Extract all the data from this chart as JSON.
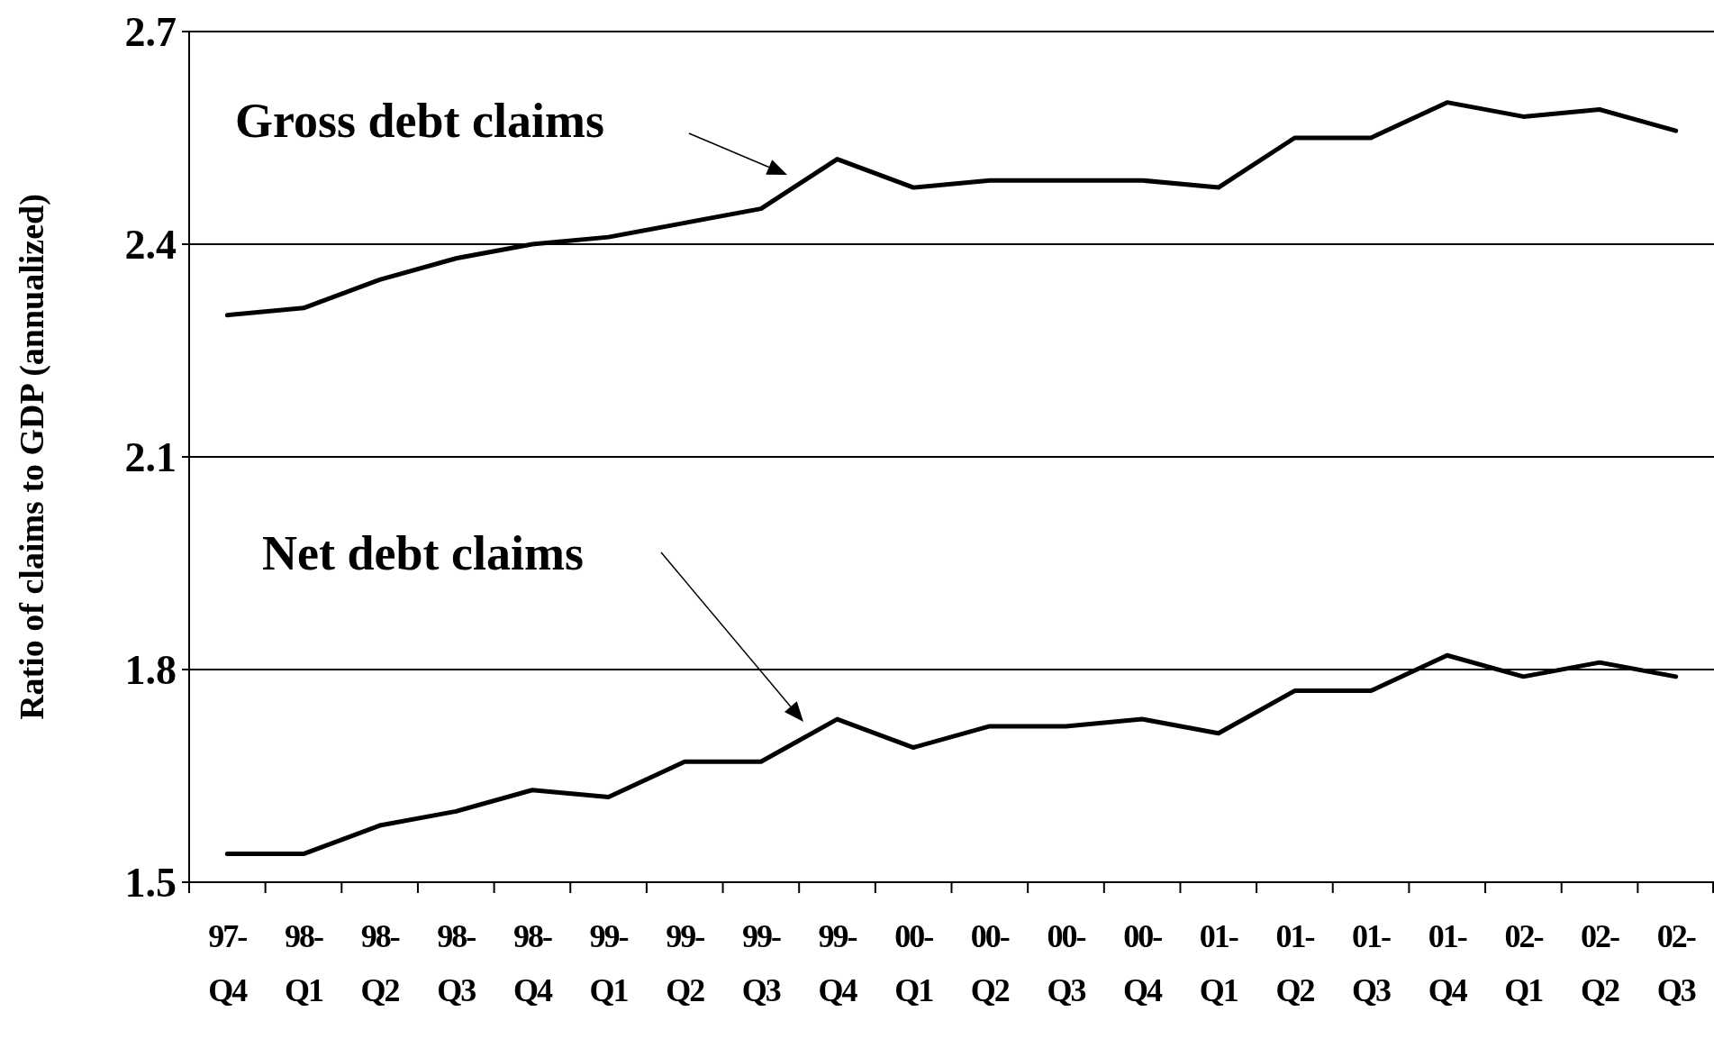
{
  "chart_data": {
    "type": "line",
    "ylabel": "Ratio of claims to GDP (annualized)",
    "categories": [
      "97- Q4",
      "98- Q1",
      "98- Q2",
      "98- Q3",
      "98- Q4",
      "99- Q1",
      "99- Q2",
      "99- Q3",
      "99- Q4",
      "00- Q1",
      "00- Q2",
      "00- Q3",
      "00- Q4",
      "01- Q1",
      "01- Q2",
      "01- Q3",
      "01- Q4",
      "02- Q1",
      "02- Q2",
      "02- Q3"
    ],
    "series": [
      {
        "color": "#000000",
        "values": [
          2.3,
          2.31,
          2.35,
          2.38,
          2.4,
          2.41,
          2.43,
          2.45,
          2.52,
          2.48,
          2.49,
          2.49,
          2.49,
          2.48,
          2.55,
          2.55,
          2.6,
          2.58,
          2.59,
          2.56
        ]
      },
      {
        "color": "#000000",
        "values": [
          1.54,
          1.54,
          1.58,
          1.6,
          1.63,
          1.62,
          1.67,
          1.67,
          1.73,
          1.69,
          1.72,
          1.72,
          1.73,
          1.71,
          1.77,
          1.77,
          1.82,
          1.79,
          1.81,
          1.79
        ]
      }
    ],
    "ylim": [
      1.5,
      2.7
    ],
    "yticks": [
      1.5,
      1.8,
      2.1,
      2.4,
      2.7
    ],
    "annotations": [
      "Gross debt claims",
      "Net debt claims"
    ],
    "grid": "y",
    "marker": "none",
    "line_style": "solid"
  }
}
